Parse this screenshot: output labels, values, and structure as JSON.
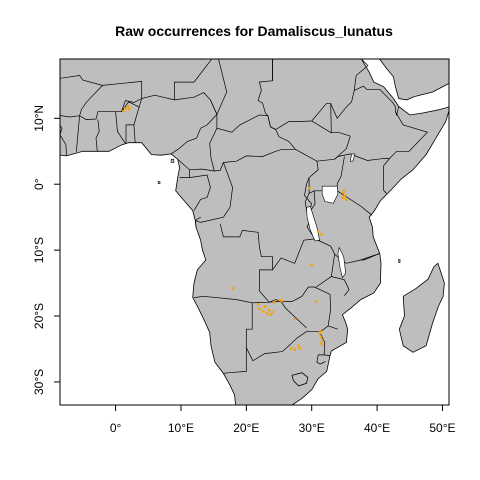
{
  "title": "Raw occurrences for Damaliscus_lunatus",
  "map": {
    "projection": "longlat",
    "xlim": [
      -8.5,
      51
    ],
    "ylim": [
      -33.5,
      19
    ],
    "land_color": "#bebebe",
    "ocean_color": "#ffffff",
    "border_color": "#000000",
    "point_color": "#f5a300"
  },
  "axes": {
    "x_ticks": [
      {
        "value": 0,
        "label": "0°"
      },
      {
        "value": 10,
        "label": "10°E"
      },
      {
        "value": 20,
        "label": "20°E"
      },
      {
        "value": 30,
        "label": "30°E"
      },
      {
        "value": 40,
        "label": "40°E"
      },
      {
        "value": 50,
        "label": "50°E"
      }
    ],
    "y_ticks": [
      {
        "value": 10,
        "label": "10°N"
      },
      {
        "value": 0,
        "label": "0°"
      },
      {
        "value": -10,
        "label": "10°S"
      },
      {
        "value": -20,
        "label": "20°S"
      },
      {
        "value": -30,
        "label": "30°S"
      }
    ]
  },
  "occurrences": [
    {
      "lon": 1.5,
      "lat": 11.5
    },
    {
      "lon": 1.9,
      "lat": 11.8
    },
    {
      "lon": 1.2,
      "lat": 11.1
    },
    {
      "lon": 2.1,
      "lat": 11.4
    },
    {
      "lon": 29.7,
      "lat": -0.6
    },
    {
      "lon": 34.8,
      "lat": -1.3
    },
    {
      "lon": 35.1,
      "lat": -1.7
    },
    {
      "lon": 34.9,
      "lat": -2.1
    },
    {
      "lon": 35.3,
      "lat": -2.4
    },
    {
      "lon": 35.0,
      "lat": -0.9
    },
    {
      "lon": 34.7,
      "lat": -2.0
    },
    {
      "lon": 31.0,
      "lat": -7.2
    },
    {
      "lon": 31.5,
      "lat": -7.6
    },
    {
      "lon": 30.0,
      "lat": -12.3
    },
    {
      "lon": 18.0,
      "lat": -15.8
    },
    {
      "lon": 21.8,
      "lat": -18.2
    },
    {
      "lon": 22.0,
      "lat": -18.9
    },
    {
      "lon": 22.6,
      "lat": -19.3
    },
    {
      "lon": 23.2,
      "lat": -19.6
    },
    {
      "lon": 23.5,
      "lat": -19.1
    },
    {
      "lon": 22.9,
      "lat": -18.6
    },
    {
      "lon": 24.0,
      "lat": -19.4
    },
    {
      "lon": 23.7,
      "lat": -19.8
    },
    {
      "lon": 24.2,
      "lat": -17.9
    },
    {
      "lon": 25.1,
      "lat": -17.6
    },
    {
      "lon": 25.4,
      "lat": -17.7
    },
    {
      "lon": 30.7,
      "lat": -17.8
    },
    {
      "lon": 27.4,
      "lat": -20.5
    },
    {
      "lon": 26.9,
      "lat": -24.9
    },
    {
      "lon": 27.4,
      "lat": -25.1
    },
    {
      "lon": 27.9,
      "lat": -24.5
    },
    {
      "lon": 28.2,
      "lat": -24.9
    },
    {
      "lon": 31.2,
      "lat": -22.6
    },
    {
      "lon": 31.4,
      "lat": -23.2
    },
    {
      "lon": 31.6,
      "lat": -23.7
    },
    {
      "lon": 31.5,
      "lat": -24.2
    },
    {
      "lon": 31.3,
      "lat": -22.3
    }
  ]
}
